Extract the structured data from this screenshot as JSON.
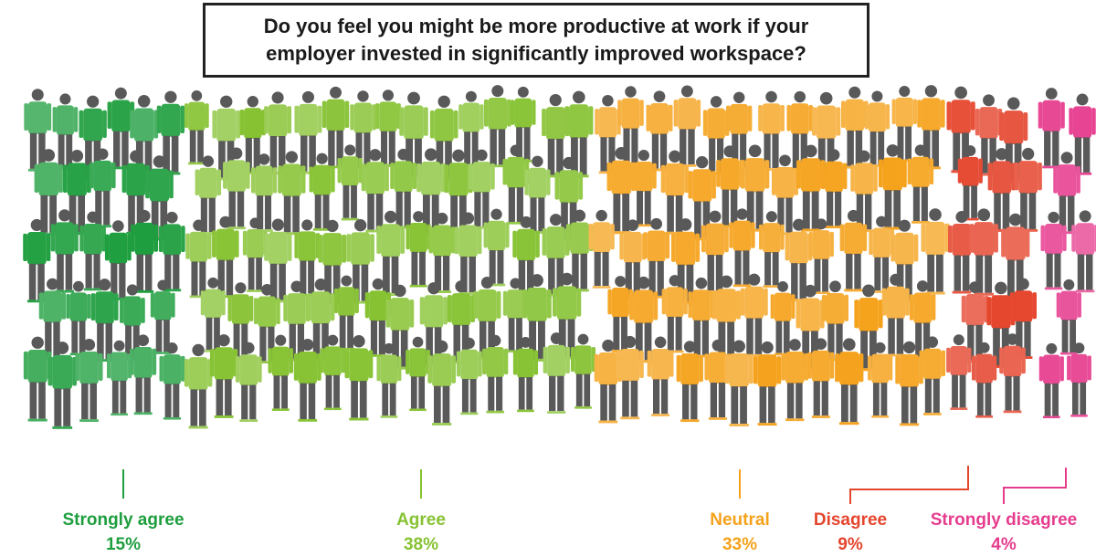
{
  "question": {
    "line1": "Do you feel you might be more productive at work if your",
    "line2": "employer invested in significantly improved workspace?"
  },
  "chart_data": {
    "type": "pictogram",
    "title": "Do you feel you might be more productive at work if your employer invested in significantly improved workspace?",
    "unit": "%",
    "categories": [
      "Strongly agree",
      "Agree",
      "Neutral",
      "Disagree",
      "Strongly disagree"
    ],
    "values": [
      15,
      38,
      33,
      9,
      4
    ],
    "value_labels": [
      "15%",
      "38%",
      "33%",
      "9%",
      "4%"
    ],
    "colors": [
      "#1e9e3e",
      "#86c232",
      "#f5a21b",
      "#e5452d",
      "#e63c8e"
    ]
  }
}
